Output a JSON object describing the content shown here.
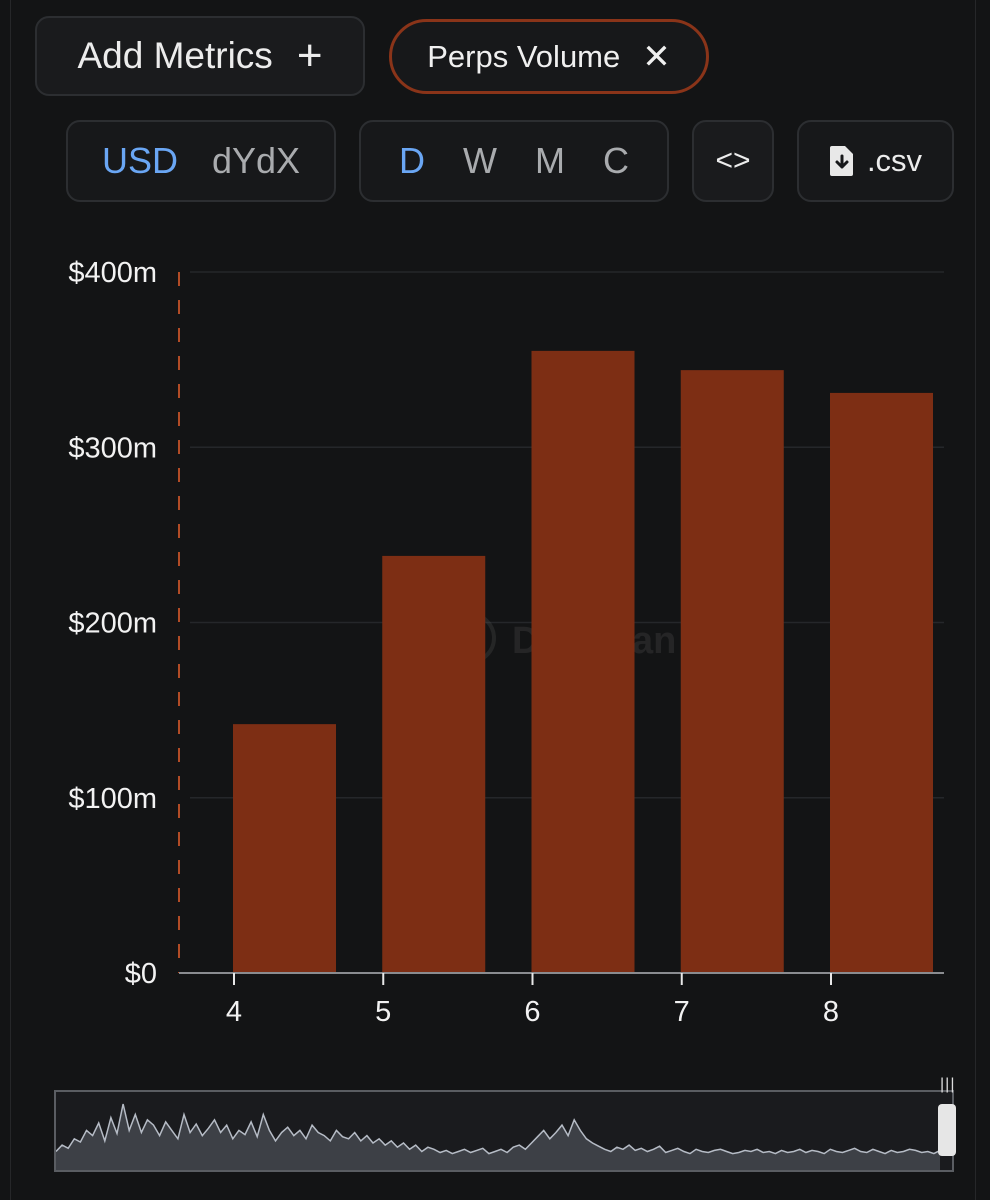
{
  "toolbar": {
    "add_metrics_label": "Add Metrics",
    "add_icon": "plus-icon",
    "metric_chip_label": "Perps Volume",
    "remove_icon": "close-icon",
    "currency_options": [
      "USD",
      "dYdX"
    ],
    "currency_selected": "USD",
    "period_options": [
      "D",
      "W",
      "M",
      "C"
    ],
    "period_selected": "D",
    "embed_label": "<>",
    "csv_label": ".csv",
    "csv_icon": "file-download-icon"
  },
  "colors": {
    "accent": "#8a3419",
    "bar": "#7d2e14",
    "selected": "#6aa6f4",
    "background": "#131415"
  },
  "chart_data": {
    "type": "bar",
    "title": "",
    "xlabel": "",
    "ylabel": "",
    "categories": [
      "4",
      "5",
      "6",
      "7",
      "8"
    ],
    "series": [
      {
        "values": [
          142,
          238,
          355,
          344,
          331
        ]
      }
    ],
    "ylim": [
      0,
      400
    ],
    "yticks": [
      0,
      100,
      200,
      300,
      400
    ],
    "ytick_labels": [
      "$0",
      "$100m",
      "$200m",
      "$300m",
      "$400m"
    ],
    "grid": true,
    "legend": "none"
  },
  "navigator_series": [
    10,
    16,
    13,
    22,
    19,
    30,
    25,
    37,
    20,
    42,
    27,
    55,
    30,
    45,
    28,
    40,
    35,
    25,
    38,
    30,
    22,
    45,
    28,
    36,
    25,
    32,
    40,
    28,
    35,
    22,
    30,
    26,
    38,
    24,
    45,
    30,
    20,
    28,
    33,
    25,
    30,
    22,
    35,
    28,
    25,
    20,
    30,
    24,
    22,
    28,
    20,
    25,
    18,
    22,
    16,
    20,
    14,
    18,
    12,
    16,
    10,
    14,
    12,
    9,
    11,
    8,
    10,
    12,
    9,
    11,
    13,
    8,
    10,
    12,
    9,
    14,
    16,
    12,
    18,
    24,
    30,
    22,
    28,
    35,
    25,
    40,
    30,
    22,
    18,
    15,
    12,
    10,
    14,
    12,
    16,
    11,
    13,
    10,
    12,
    15,
    9,
    11,
    13,
    10,
    8,
    12,
    10,
    9,
    11,
    12,
    10,
    8,
    9,
    11,
    10,
    12,
    9,
    10,
    8,
    11,
    9,
    10,
    12,
    9,
    11,
    10,
    8,
    12,
    10,
    9,
    11,
    13,
    10,
    9,
    12,
    10,
    8,
    11,
    9,
    10,
    12,
    11,
    9,
    10,
    8,
    11
  ]
}
